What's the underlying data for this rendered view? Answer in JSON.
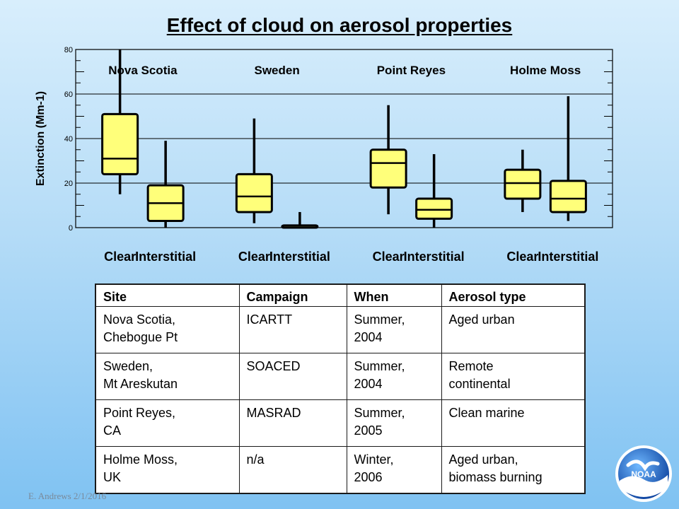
{
  "title": "Effect of cloud on aerosol properties",
  "chart_data": {
    "type": "boxplot",
    "ylabel": "Extinction (Mm-1)",
    "ylim": [
      0,
      80
    ],
    "yticks": [
      0,
      20,
      40,
      60,
      80
    ],
    "grid_y": [
      20,
      40,
      60
    ],
    "box_color": "#ffff7a",
    "groups": [
      {
        "site": "Nova Scotia",
        "boxes": [
          {
            "label": "Clear",
            "whisker_low": 15,
            "q1": 24,
            "median": 31,
            "q3": 51,
            "whisker_high": 80
          },
          {
            "label": "Interstitial",
            "whisker_low": 0,
            "q1": 3,
            "median": 11,
            "q3": 19,
            "whisker_high": 39
          }
        ]
      },
      {
        "site": "Sweden",
        "boxes": [
          {
            "label": "Clear",
            "whisker_low": 2,
            "q1": 7,
            "median": 14,
            "q3": 24,
            "whisker_high": 49
          },
          {
            "label": "Interstitial",
            "whisker_low": 0,
            "q1": 0,
            "median": 0,
            "q3": 1,
            "whisker_high": 7
          }
        ]
      },
      {
        "site": "Point Reyes",
        "boxes": [
          {
            "label": "Clear",
            "whisker_low": 6,
            "q1": 18,
            "median": 29,
            "q3": 35,
            "whisker_high": 55
          },
          {
            "label": "Interstitial",
            "whisker_low": 0,
            "q1": 4,
            "median": 8,
            "q3": 13,
            "whisker_high": 33
          }
        ]
      },
      {
        "site": "Holme Moss",
        "boxes": [
          {
            "label": "Clear",
            "whisker_low": 7,
            "q1": 13,
            "median": 20,
            "q3": 26,
            "whisker_high": 35
          },
          {
            "label": "Interstitial",
            "whisker_low": 3,
            "q1": 7,
            "median": 13,
            "q3": 21,
            "whisker_high": 59
          }
        ]
      }
    ]
  },
  "table": {
    "headers": [
      "Site",
      "Campaign",
      "When",
      "Aerosol type"
    ],
    "rows": [
      [
        [
          "Nova Scotia,",
          "Chebogue Pt"
        ],
        [
          "ICARTT"
        ],
        [
          "Summer,",
          "2004"
        ],
        [
          "Aged urban"
        ]
      ],
      [
        [
          "Sweden,",
          "Mt Areskutan"
        ],
        [
          "SOACED"
        ],
        [
          "Summer,",
          "2004"
        ],
        [
          "Remote",
          "continental"
        ]
      ],
      [
        [
          "Point Reyes,",
          "CA"
        ],
        [
          "MASRAD"
        ],
        [
          "Summer,",
          "2005"
        ],
        [
          "Clean marine"
        ]
      ],
      [
        [
          "Holme Moss,",
          "UK"
        ],
        [
          "n/a"
        ],
        [
          "Winter,",
          "2006"
        ],
        [
          "Aged urban,",
          "biomass burning"
        ]
      ]
    ]
  },
  "footer": "E. Andrews  2/1/2016",
  "logo_text": "NOAA"
}
